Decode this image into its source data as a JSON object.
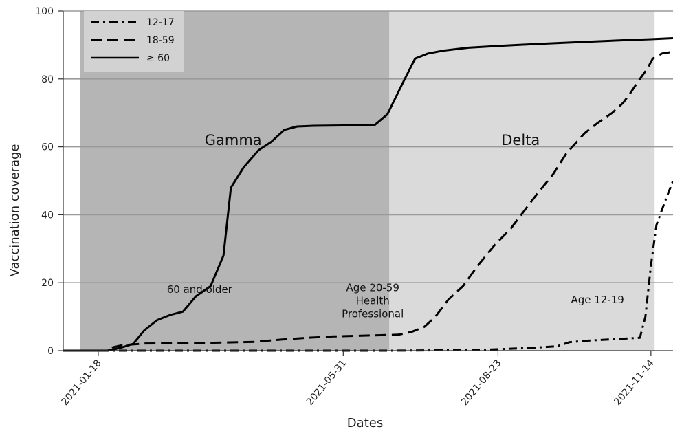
{
  "chart_data": {
    "type": "line",
    "xlabel": "Dates",
    "ylabel": "Vaccination coverage",
    "ylim": [
      0,
      100
    ],
    "xlim": [
      "2020-12-30",
      "2021-11-26"
    ],
    "yticks": [
      0,
      20,
      40,
      60,
      80,
      100
    ],
    "xticks": [
      "2021-01-18",
      "2021-05-31",
      "2021-08-23",
      "2021-11-14"
    ],
    "grid": "horizontal",
    "legend_position": "top-left",
    "regions": [
      {
        "label": "Gamma",
        "start": "2021-01-08",
        "end": "2021-06-25",
        "color": "#b5b5b5"
      },
      {
        "label": "Delta",
        "start": "2021-06-25",
        "end": "2021-11-16",
        "color": "#dadada"
      }
    ],
    "annotations": [
      {
        "lines": [
          "60 and older"
        ],
        "x": "2021-03-14",
        "y": 17
      },
      {
        "lines": [
          "Age 20-59",
          "Health",
          "Professional"
        ],
        "x": "2021-06-16",
        "y": 17.5
      },
      {
        "lines": [
          "Age 12-19"
        ],
        "x": "2021-10-16",
        "y": 14
      }
    ],
    "series": [
      {
        "name": "12-17",
        "dash": "dashdot",
        "points": [
          [
            "2020-12-30",
            0
          ],
          [
            "2021-06-25",
            0
          ],
          [
            "2021-07-20",
            0.1
          ],
          [
            "2021-08-17",
            0.3
          ],
          [
            "2021-09-10",
            0.8
          ],
          [
            "2021-09-24",
            1.3
          ],
          [
            "2021-10-01",
            2.5
          ],
          [
            "2021-10-12",
            3.0
          ],
          [
            "2021-10-26",
            3.4
          ],
          [
            "2021-11-08",
            3.8
          ],
          [
            "2021-11-11",
            10
          ],
          [
            "2021-11-14",
            25
          ],
          [
            "2021-11-17",
            37
          ],
          [
            "2021-11-21",
            43
          ],
          [
            "2021-11-26",
            50
          ]
        ]
      },
      {
        "name": "18-59",
        "dash": "dashed",
        "points": [
          [
            "2020-12-30",
            0
          ],
          [
            "2021-01-23",
            0
          ],
          [
            "2021-01-26",
            1
          ],
          [
            "2021-01-31",
            1.6
          ],
          [
            "2021-02-12",
            2.1
          ],
          [
            "2021-03-12",
            2.2
          ],
          [
            "2021-04-13",
            2.6
          ],
          [
            "2021-04-28",
            3.3
          ],
          [
            "2021-05-12",
            3.8
          ],
          [
            "2021-05-26",
            4.2
          ],
          [
            "2021-06-30",
            4.7
          ],
          [
            "2021-07-07",
            5.5
          ],
          [
            "2021-07-14",
            7
          ],
          [
            "2021-07-20",
            10
          ],
          [
            "2021-07-27",
            15
          ],
          [
            "2021-08-04",
            19
          ],
          [
            "2021-08-12",
            25
          ],
          [
            "2021-08-21",
            31
          ],
          [
            "2021-08-30",
            36
          ],
          [
            "2021-09-06",
            41
          ],
          [
            "2021-09-13",
            46
          ],
          [
            "2021-09-22",
            52
          ],
          [
            "2021-09-29",
            58
          ],
          [
            "2021-10-09",
            64
          ],
          [
            "2021-10-16",
            67
          ],
          [
            "2021-10-24",
            70
          ],
          [
            "2021-10-30",
            73
          ],
          [
            "2021-11-03",
            76
          ],
          [
            "2021-11-08",
            80
          ],
          [
            "2021-11-12",
            83
          ],
          [
            "2021-11-15",
            86
          ],
          [
            "2021-11-20",
            87.5
          ],
          [
            "2021-11-26",
            88
          ]
        ]
      },
      {
        "name": "≥ 60",
        "dash": "solid",
        "points": [
          [
            "2020-12-30",
            0
          ],
          [
            "2021-01-23",
            0
          ],
          [
            "2021-01-30",
            0.8
          ],
          [
            "2021-02-06",
            2
          ],
          [
            "2021-02-12",
            6
          ],
          [
            "2021-02-19",
            9
          ],
          [
            "2021-02-26",
            10.5
          ],
          [
            "2021-03-05",
            11.5
          ],
          [
            "2021-03-12",
            16
          ],
          [
            "2021-03-20",
            19
          ],
          [
            "2021-03-27",
            28
          ],
          [
            "2021-03-31",
            48
          ],
          [
            "2021-04-07",
            54
          ],
          [
            "2021-04-15",
            59
          ],
          [
            "2021-04-22",
            61.5
          ],
          [
            "2021-04-29",
            65
          ],
          [
            "2021-05-06",
            66
          ],
          [
            "2021-05-15",
            66.2
          ],
          [
            "2021-06-17",
            66.4
          ],
          [
            "2021-06-24",
            69.6
          ],
          [
            "2021-07-02",
            78.5
          ],
          [
            "2021-07-09",
            86
          ],
          [
            "2021-07-16",
            87.5
          ],
          [
            "2021-07-24",
            88.3
          ],
          [
            "2021-08-07",
            89.2
          ],
          [
            "2021-08-23",
            89.7
          ],
          [
            "2021-09-10",
            90.2
          ],
          [
            "2021-10-05",
            90.8
          ],
          [
            "2021-10-30",
            91.4
          ],
          [
            "2021-11-14",
            91.7
          ],
          [
            "2021-11-26",
            92
          ]
        ]
      }
    ]
  }
}
